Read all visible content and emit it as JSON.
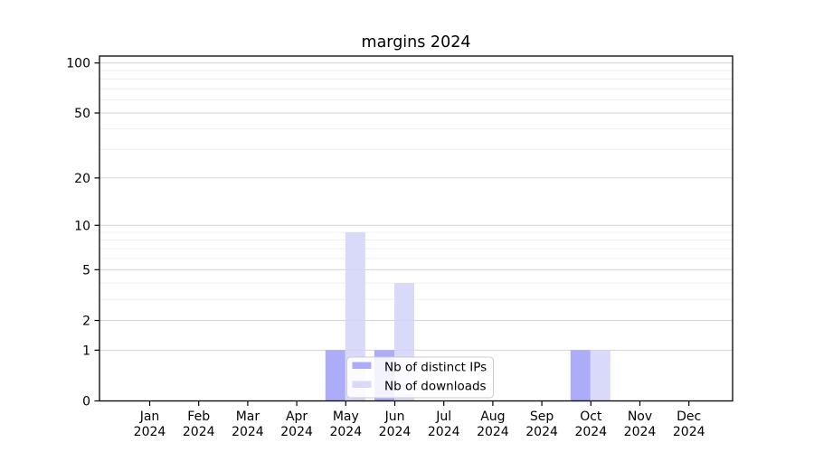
{
  "chart_data": {
    "type": "bar",
    "title": "margins 2024",
    "categories": [
      "Jan 2024",
      "Feb 2024",
      "Mar 2024",
      "Apr 2024",
      "May 2024",
      "Jun 2024",
      "Jul 2024",
      "Aug 2024",
      "Sep 2024",
      "Oct 2024",
      "Nov 2024",
      "Dec 2024"
    ],
    "series": [
      {
        "name": "Nb of distinct IPs",
        "color": "#9f9ef7",
        "values": [
          0,
          0,
          0,
          0,
          1,
          1,
          0,
          0,
          0,
          1,
          0,
          0
        ]
      },
      {
        "name": "Nb of downloads",
        "color": "#d2d2f9",
        "values": [
          0,
          0,
          0,
          0,
          9,
          4,
          0,
          0,
          0,
          1,
          0,
          0
        ]
      }
    ],
    "xlabel": "",
    "ylabel": "",
    "y_scale": "log1p",
    "y_ticks": [
      0,
      1,
      2,
      5,
      10,
      20,
      50,
      100
    ],
    "y_minor_ticks": [
      3,
      4,
      6,
      7,
      8,
      9,
      30,
      40,
      60,
      70,
      80,
      90
    ],
    "ylim": [
      0,
      110
    ],
    "grid": "horizontal",
    "legend_position": "lower-center"
  }
}
